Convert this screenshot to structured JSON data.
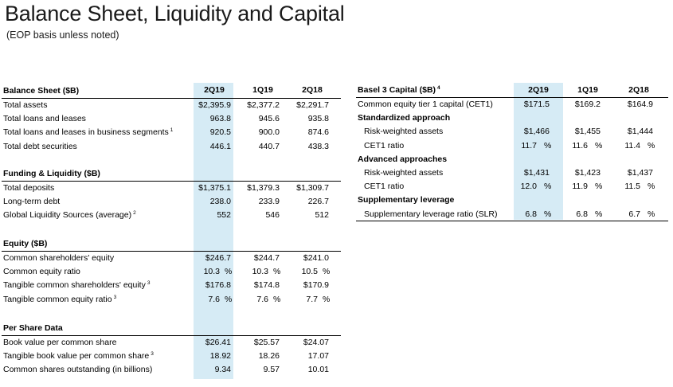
{
  "title": "Balance Sheet, Liquidity and Capital",
  "subtitle": "(EOP basis unless noted)",
  "columns": [
    "2Q19",
    "1Q19",
    "2Q18"
  ],
  "balance_sheet": {
    "header": "Balance Sheet ($B)",
    "rows": [
      {
        "label": "Total assets",
        "sup": "",
        "v": [
          "$2,395.9",
          "$2,377.2",
          "$2,291.7"
        ]
      },
      {
        "label": "Total loans and leases",
        "sup": "",
        "v": [
          "963.8",
          "945.6",
          "935.8"
        ]
      },
      {
        "label": "Total loans and leases in business segments",
        "sup": "1",
        "v": [
          "920.5",
          "900.0",
          "874.6"
        ]
      },
      {
        "label": "Total debt securities",
        "sup": "",
        "v": [
          "446.1",
          "440.7",
          "438.3"
        ]
      }
    ]
  },
  "funding": {
    "header": "Funding & Liquidity ($B)",
    "rows": [
      {
        "label": "Total deposits",
        "sup": "",
        "v": [
          "$1,375.1",
          "$1,379.3",
          "$1,309.7"
        ]
      },
      {
        "label": "Long-term debt",
        "sup": "",
        "v": [
          "238.0",
          "233.9",
          "226.7"
        ]
      },
      {
        "label": "Global Liquidity Sources (average)",
        "sup": "2",
        "v": [
          "552",
          "546",
          "512"
        ]
      }
    ]
  },
  "equity": {
    "header": "Equity ($B)",
    "rows": [
      {
        "label": "Common shareholders' equity",
        "sup": "",
        "v": [
          "$246.7",
          "$244.7",
          "$241.0"
        ],
        "pct": false
      },
      {
        "label": "Common equity ratio",
        "sup": "",
        "v": [
          "10.3",
          "10.3",
          "10.5"
        ],
        "pct": true
      },
      {
        "label": "Tangible common shareholders' equity",
        "sup": "3",
        "v": [
          "$176.8",
          "$174.8",
          "$170.9"
        ],
        "pct": false
      },
      {
        "label": "Tangible common equity ratio",
        "sup": "3",
        "v": [
          "7.6",
          "7.6",
          "7.7"
        ],
        "pct": true
      }
    ]
  },
  "per_share": {
    "header": "Per Share Data",
    "rows": [
      {
        "label": "Book value per common share",
        "sup": "",
        "v": [
          "$26.41",
          "$25.57",
          "$24.07"
        ]
      },
      {
        "label": "Tangible book value per common share",
        "sup": "3",
        "v": [
          "18.92",
          "18.26",
          "17.07"
        ]
      },
      {
        "label": "Common shares outstanding (in billions)",
        "sup": "",
        "v": [
          "9.34",
          "9.57",
          "10.01"
        ]
      }
    ]
  },
  "basel": {
    "header": "Basel 3 Capital ($B)",
    "header_sup": "4",
    "rows": [
      {
        "type": "row",
        "label": "Common equity tier 1 capital (CET1)",
        "v": [
          "$171.5",
          "$169.2",
          "$164.9"
        ],
        "pct": false
      },
      {
        "type": "sub",
        "label": "Standardized approach"
      },
      {
        "type": "row",
        "label": "Risk-weighted assets",
        "v": [
          "$1,466",
          "$1,455",
          "$1,444"
        ],
        "pct": false
      },
      {
        "type": "row",
        "label": "CET1 ratio",
        "v": [
          "11.7",
          "11.6",
          "11.4"
        ],
        "pct": true
      },
      {
        "type": "sub",
        "label": "Advanced approaches"
      },
      {
        "type": "row",
        "label": "Risk-weighted assets",
        "v": [
          "$1,431",
          "$1,423",
          "$1,437"
        ],
        "pct": false
      },
      {
        "type": "row",
        "label": "CET1 ratio",
        "v": [
          "12.0",
          "11.9",
          "11.5"
        ],
        "pct": true
      },
      {
        "type": "sub",
        "label": "Supplementary leverage"
      },
      {
        "type": "row",
        "label": "Supplementary leverage ratio (SLR)",
        "v": [
          "6.8",
          "6.8",
          "6.7"
        ],
        "pct": true
      }
    ]
  },
  "percent_sign": "%",
  "colors": {
    "highlight": "#d6ebf5"
  }
}
